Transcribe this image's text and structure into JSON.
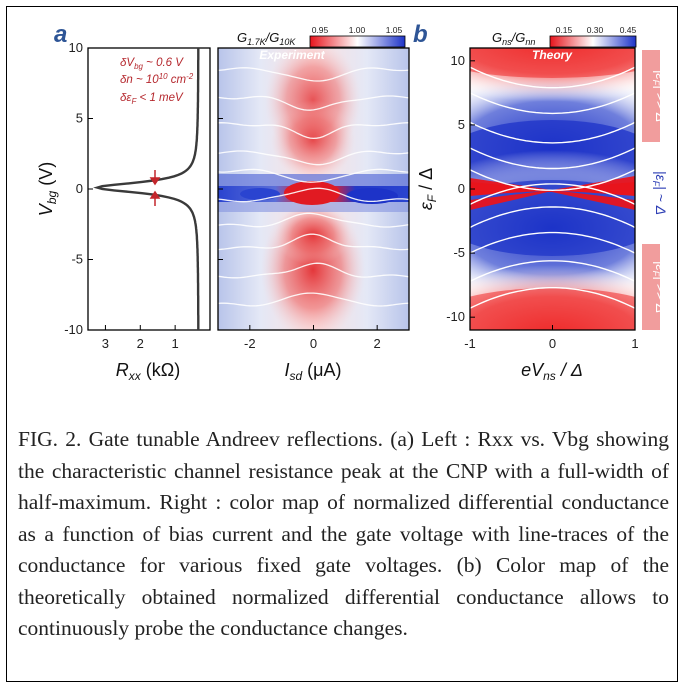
{
  "panel_labels": {
    "a": "a",
    "b": "b"
  },
  "panel_a_left": {
    "annotations": [
      "δV",
      "bg",
      " ~ 0.6 V",
      "δn ~ 10",
      "10",
      " cm",
      "-2",
      "δε",
      "F",
      " < 1 meV"
    ],
    "yticks": [
      "10",
      "5",
      "0",
      "-5",
      "-10"
    ],
    "xticks": [
      "3",
      "2",
      "1"
    ],
    "ylabel": {
      "main": "V",
      "sub": "bg",
      "unit": " (V)"
    },
    "xlabel": {
      "main": "R",
      "sub": "xx",
      "unit": " (kΩ)"
    }
  },
  "panel_a_right": {
    "title": "Experiment",
    "colorbar_label": {
      "g1": "G",
      "s1": "1.7K",
      "sl": "/G",
      "s2": "10K"
    },
    "colorbar_ticks": [
      "0.95",
      "1.00",
      "1.05"
    ],
    "xticks": [
      "-2",
      "0",
      "2"
    ],
    "xlabel": {
      "main": "I",
      "sub": "sd",
      "unit": " (μA)"
    }
  },
  "panel_b": {
    "title": "Theory",
    "colorbar_label": {
      "g1": "G",
      "s1": "ns",
      "sl": "/G",
      "s2": "nn"
    },
    "colorbar_ticks": [
      "0.15",
      "0.30",
      "0.45"
    ],
    "yticks": [
      "10",
      "5",
      "0",
      "-5",
      "-10"
    ],
    "xticks": [
      "-1",
      "0",
      "1"
    ],
    "ylabel": "ε",
    "ylabel_sub": "F",
    "ylabel_rest": " / Δ",
    "xlabel": {
      "main": "eV",
      "sub": "ns",
      "unit": " / Δ"
    },
    "side_labels": [
      "|ε",
      "F",
      "| >> Δ",
      "|ε",
      "F",
      "| ~ Δ",
      "|ε",
      "F",
      "| >> Δ"
    ]
  },
  "colors": {
    "red": "#e8141c",
    "blue": "#1d33c8",
    "dark_red_text": "#b5282e",
    "panel_label": "#2e5596"
  },
  "chart_data": [
    {
      "type": "line",
      "title": "",
      "xlabel": "Rxx (kΩ)",
      "ylabel": "Vbg (V)",
      "xlim": [
        3.5,
        0
      ],
      "ylim": [
        -10,
        10
      ],
      "series": [
        {
          "x": [
            0.35,
            0.38,
            0.45,
            0.6,
            1.0,
            2.0,
            3.2,
            2.0,
            1.0,
            0.6,
            0.45,
            0.38,
            0.35
          ],
          "y": [
            10,
            6,
            3,
            1.5,
            0.7,
            0.4,
            0.15,
            -0.1,
            -0.5,
            -1.5,
            -3,
            -6,
            -10
          ]
        }
      ]
    },
    {
      "type": "heatmap",
      "title": "Experiment",
      "xlabel": "Isd (μA)",
      "ylabel": "Vbg (V)",
      "xlim": [
        -3,
        3
      ],
      "ylim": [
        -10,
        10
      ],
      "colorbar": {
        "label": "G1.7K/G10K",
        "range": [
          0.95,
          1.05
        ]
      }
    },
    {
      "type": "heatmap",
      "title": "Theory",
      "xlabel": "eVns/Δ",
      "ylabel": "εF/Δ",
      "xlim": [
        -1,
        1
      ],
      "ylim": [
        -11,
        11
      ],
      "colorbar": {
        "label": "Gns/Gnn",
        "range": [
          0.15,
          0.45
        ]
      }
    }
  ],
  "caption": "FIG. 2. Gate tunable Andreev reflections. (a) Left : Rxx vs. Vbg showing the characteristic channel resistance peak at the CNP with a full-width of half-maximum. Right : color map of normalized differential conductance as a function of bias current and the gate voltage with line-traces of the conductance for various fixed gate voltages. (b) Color map of the theoretically obtained normalized differential conductance allows to continuously probe the conductance changes."
}
